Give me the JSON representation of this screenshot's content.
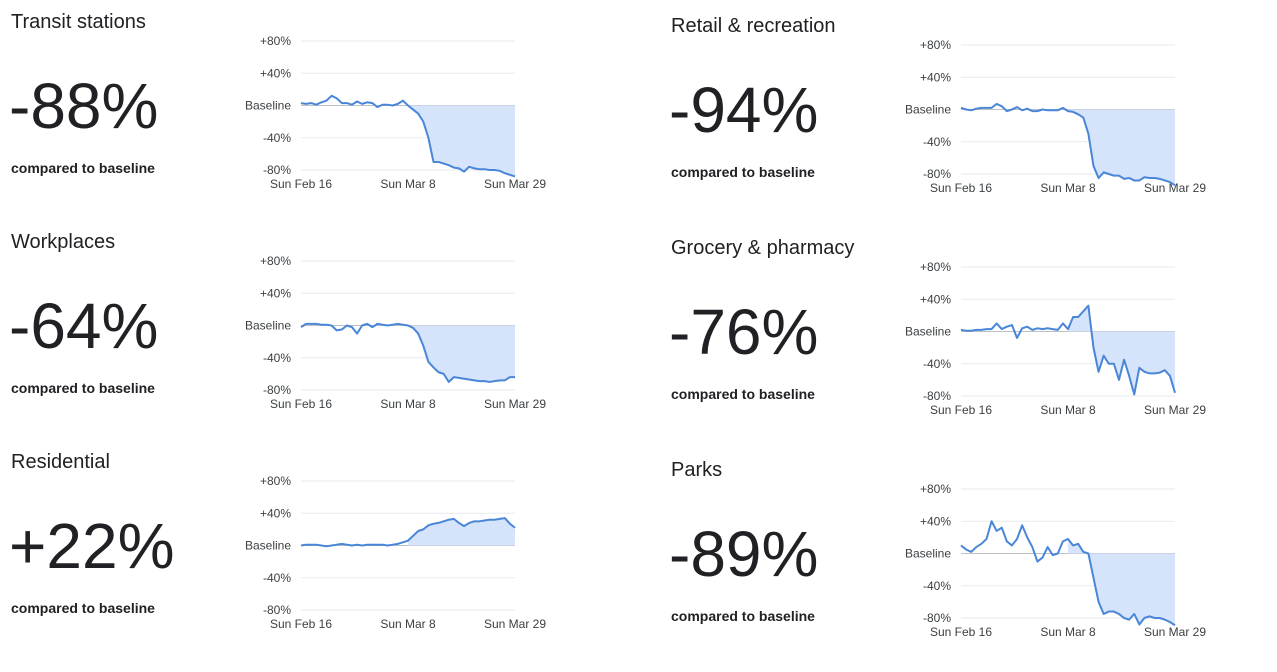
{
  "chart_data": [
    {
      "type": "area",
      "title": "Transit stations",
      "headline": "-88%",
      "caption": "compared to baseline",
      "categories": [
        "Sun Feb 16",
        null,
        null,
        null,
        null,
        null,
        null,
        null,
        null,
        null,
        null,
        null,
        null,
        null,
        null,
        null,
        null,
        null,
        null,
        null,
        null,
        "Sun Mar 8",
        null,
        null,
        null,
        null,
        null,
        null,
        null,
        null,
        null,
        null,
        null,
        null,
        null,
        null,
        null,
        null,
        null,
        null,
        null,
        null,
        "Sun Mar 29"
      ],
      "values": [
        3,
        2,
        3,
        1,
        4,
        6,
        12,
        9,
        3,
        3,
        1,
        5,
        2,
        4,
        3,
        -2,
        1,
        1,
        0,
        2,
        6,
        0,
        -5,
        -10,
        -20,
        -40,
        -70,
        -70,
        -72,
        -74,
        -77,
        -78,
        -82,
        -76,
        -78,
        -79,
        -79,
        -80,
        -80,
        -81,
        -84,
        -86,
        -88
      ],
      "ylim": [
        -80,
        80
      ],
      "yticks": [
        {
          "value": 80,
          "label": "+80%"
        },
        {
          "value": 40,
          "label": "+40%"
        },
        {
          "value": 0,
          "label": "Baseline"
        },
        {
          "value": -40,
          "label": "-40%"
        },
        {
          "value": -80,
          "label": "-80%"
        }
      ],
      "color": "#4a86d8",
      "fill_color": "#d6e4fb",
      "grid": true
    },
    {
      "type": "area",
      "title": "Retail & recreation",
      "headline": "-94%",
      "caption": "compared to baseline",
      "categories": [
        "Sun Feb 16",
        null,
        null,
        null,
        null,
        null,
        null,
        null,
        null,
        null,
        null,
        null,
        null,
        null,
        null,
        null,
        null,
        null,
        null,
        null,
        null,
        "Sun Mar 8",
        null,
        null,
        null,
        null,
        null,
        null,
        null,
        null,
        null,
        null,
        null,
        null,
        null,
        null,
        null,
        null,
        null,
        null,
        null,
        null,
        "Sun Mar 29"
      ],
      "values": [
        2,
        0,
        -1,
        1,
        2,
        2,
        2,
        7,
        4,
        -2,
        0,
        3,
        -1,
        1,
        -2,
        -2,
        0,
        -1,
        -1,
        -1,
        2,
        -2,
        -3,
        -6,
        -10,
        -30,
        -70,
        -85,
        -78,
        -80,
        -82,
        -82,
        -86,
        -85,
        -88,
        -88,
        -84,
        -85,
        -85,
        -86,
        -88,
        -90,
        -94
      ],
      "ylim": [
        -80,
        80
      ],
      "yticks": [
        {
          "value": 80,
          "label": "+80%"
        },
        {
          "value": 40,
          "label": "+40%"
        },
        {
          "value": 0,
          "label": "Baseline"
        },
        {
          "value": -40,
          "label": "-40%"
        },
        {
          "value": -80,
          "label": "-80%"
        }
      ],
      "color": "#4a86d8",
      "fill_color": "#d6e4fb",
      "grid": true
    },
    {
      "type": "area",
      "title": "Workplaces",
      "headline": "-64%",
      "caption": "compared to baseline",
      "categories": [
        "Sun Feb 16",
        null,
        null,
        null,
        null,
        null,
        null,
        null,
        null,
        null,
        null,
        null,
        null,
        null,
        null,
        null,
        null,
        null,
        null,
        null,
        null,
        "Sun Mar 8",
        null,
        null,
        null,
        null,
        null,
        null,
        null,
        null,
        null,
        null,
        null,
        null,
        null,
        null,
        null,
        null,
        null,
        null,
        null,
        null,
        "Sun Mar 29"
      ],
      "values": [
        -2,
        2,
        2,
        2,
        1,
        1,
        0,
        -6,
        -5,
        0,
        -2,
        -10,
        0,
        2,
        -2,
        2,
        1,
        0,
        1,
        2,
        1,
        0,
        -3,
        -10,
        -25,
        -45,
        -52,
        -58,
        -60,
        -70,
        -64,
        -65,
        -66,
        -67,
        -68,
        -69,
        -69,
        -70,
        -69,
        -68,
        -68,
        -64,
        -64
      ],
      "ylim": [
        -80,
        80
      ],
      "yticks": [
        {
          "value": 80,
          "label": "+80%"
        },
        {
          "value": 40,
          "label": "+40%"
        },
        {
          "value": 0,
          "label": "Baseline"
        },
        {
          "value": -40,
          "label": "-40%"
        },
        {
          "value": -80,
          "label": "-80%"
        }
      ],
      "color": "#4a86d8",
      "fill_color": "#d6e4fb",
      "grid": true
    },
    {
      "type": "area",
      "title": "Grocery & pharmacy",
      "headline": "-76%",
      "caption": "compared to baseline",
      "categories": [
        "Sun Feb 16",
        null,
        null,
        null,
        null,
        null,
        null,
        null,
        null,
        null,
        null,
        null,
        null,
        null,
        null,
        null,
        null,
        null,
        null,
        null,
        null,
        "Sun Mar 8",
        null,
        null,
        null,
        null,
        null,
        null,
        null,
        null,
        null,
        null,
        null,
        null,
        null,
        null,
        null,
        null,
        null,
        null,
        null,
        null,
        "Sun Mar 29"
      ],
      "values": [
        2,
        1,
        1,
        2,
        2,
        3,
        3,
        10,
        3,
        6,
        8,
        -8,
        4,
        6,
        2,
        4,
        3,
        4,
        3,
        2,
        10,
        3,
        18,
        18,
        25,
        32,
        -20,
        -50,
        -30,
        -40,
        -40,
        -60,
        -35,
        -55,
        -78,
        -45,
        -50,
        -52,
        -52,
        -51,
        -48,
        -55,
        -76
      ],
      "ylim": [
        -80,
        80
      ],
      "yticks": [
        {
          "value": 80,
          "label": "+80%"
        },
        {
          "value": 40,
          "label": "+40%"
        },
        {
          "value": 0,
          "label": "Baseline"
        },
        {
          "value": -40,
          "label": "-40%"
        },
        {
          "value": -80,
          "label": "-80%"
        }
      ],
      "color": "#4a86d8",
      "fill_color": "#d6e4fb",
      "grid": true
    },
    {
      "type": "area",
      "title": "Residential",
      "headline": "+22%",
      "caption": "compared to baseline",
      "categories": [
        "Sun Feb 16",
        null,
        null,
        null,
        null,
        null,
        null,
        null,
        null,
        null,
        null,
        null,
        null,
        null,
        null,
        null,
        null,
        null,
        null,
        null,
        null,
        "Sun Mar 8",
        null,
        null,
        null,
        null,
        null,
        null,
        null,
        null,
        null,
        null,
        null,
        null,
        null,
        null,
        null,
        null,
        null,
        null,
        null,
        null,
        "Sun Mar 29"
      ],
      "values": [
        0,
        1,
        1,
        1,
        0,
        -1,
        0,
        1,
        2,
        1,
        0,
        1,
        0,
        1,
        1,
        1,
        1,
        0,
        1,
        2,
        4,
        6,
        12,
        18,
        20,
        25,
        27,
        28,
        30,
        32,
        33,
        28,
        24,
        28,
        30,
        30,
        31,
        32,
        32,
        33,
        34,
        27,
        22
      ],
      "ylim": [
        -80,
        80
      ],
      "yticks": [
        {
          "value": 80,
          "label": "+80%"
        },
        {
          "value": 40,
          "label": "+40%"
        },
        {
          "value": 0,
          "label": "Baseline"
        },
        {
          "value": -40,
          "label": "-40%"
        },
        {
          "value": -80,
          "label": "-80%"
        }
      ],
      "color": "#4a86d8",
      "fill_color": "#d6e4fb",
      "grid": true
    },
    {
      "type": "area",
      "title": "Parks",
      "headline": "-89%",
      "caption": "compared to baseline",
      "categories": [
        "Sun Feb 16",
        null,
        null,
        null,
        null,
        null,
        null,
        null,
        null,
        null,
        null,
        null,
        null,
        null,
        null,
        null,
        null,
        null,
        null,
        null,
        null,
        "Sun Mar 8",
        null,
        null,
        null,
        null,
        null,
        null,
        null,
        null,
        null,
        null,
        null,
        null,
        null,
        null,
        null,
        null,
        null,
        null,
        null,
        null,
        "Sun Mar 29"
      ],
      "values": [
        10,
        5,
        2,
        8,
        12,
        18,
        40,
        28,
        32,
        15,
        10,
        18,
        35,
        20,
        8,
        -10,
        -5,
        8,
        -2,
        0,
        15,
        18,
        10,
        12,
        2,
        0,
        -30,
        -60,
        -75,
        -72,
        -72,
        -75,
        -80,
        -82,
        -75,
        -88,
        -80,
        -78,
        -80,
        -80,
        -82,
        -85,
        -89
      ],
      "ylim": [
        -80,
        80
      ],
      "yticks": [
        {
          "value": 80,
          "label": "+80%"
        },
        {
          "value": 40,
          "label": "+40%"
        },
        {
          "value": 0,
          "label": "Baseline"
        },
        {
          "value": -40,
          "label": "-40%"
        },
        {
          "value": -80,
          "label": "-80%"
        }
      ],
      "color": "#4a86d8",
      "fill_color": "#d6e4fb",
      "grid": true
    }
  ]
}
